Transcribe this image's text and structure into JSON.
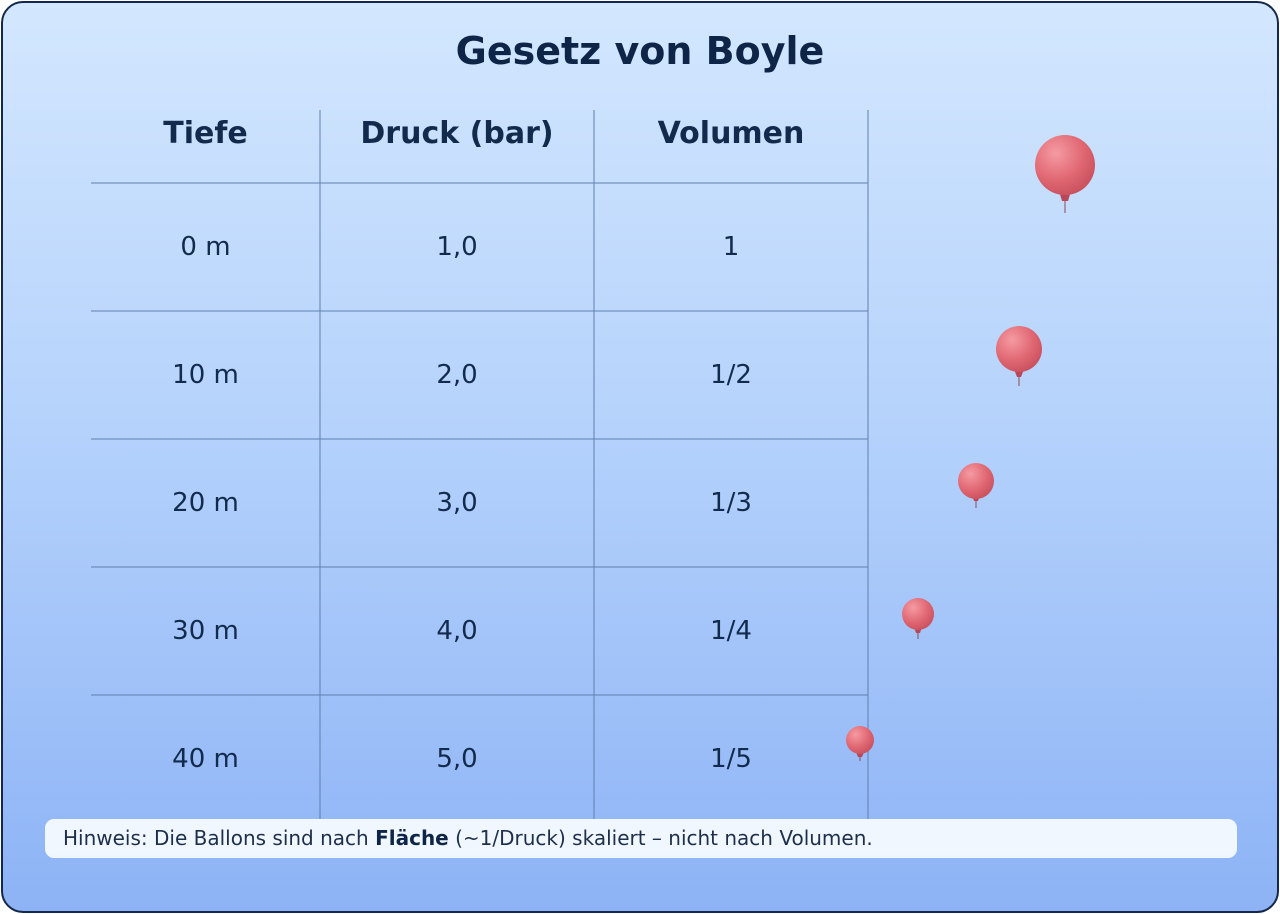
{
  "title": "Gesetz von Boyle",
  "table": {
    "header": [
      "Tiefe",
      "Druck (bar)",
      "Volumen"
    ],
    "rows": [
      [
        "0 m",
        "1,0",
        "1"
      ],
      [
        "10 m",
        "2,0",
        "1/2"
      ],
      [
        "20 m",
        "3,0",
        "1/3"
      ],
      [
        "30 m",
        "4,0",
        "1/4"
      ],
      [
        "40 m",
        "5,0",
        "1/5"
      ]
    ]
  },
  "note": {
    "before": "Hinweis: Die Ballons sind nach ",
    "bold": "Fläche",
    "after": " (~1/Druck) skaliert – nicht nach Volumen."
  }
}
